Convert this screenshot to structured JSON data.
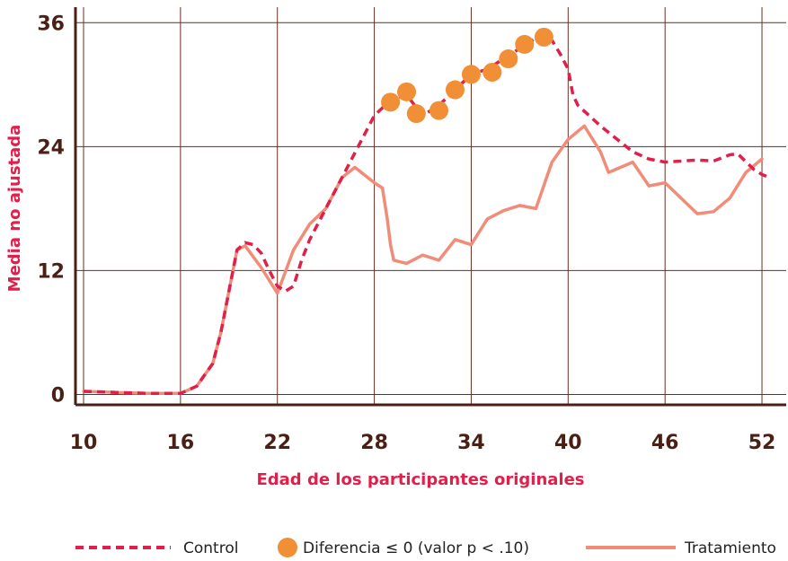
{
  "colors": {
    "axis": "#4a1f14",
    "grid": "#6b2e22",
    "label_accent": "#e0204a",
    "tick_label": "#4a1f14",
    "control": "#e0204a",
    "treatment": "#f08c78",
    "dots": "#f08f36"
  },
  "chart_data": {
    "type": "line",
    "xlabel": "Edad de los participantes originales",
    "ylabel": "Media no ajustada",
    "xlim": [
      9.5,
      53.5
    ],
    "ylim": [
      -1,
      37.5
    ],
    "x_ticks": [
      10,
      16,
      22,
      28,
      34,
      40,
      46,
      52
    ],
    "y_ticks": [
      0,
      12,
      24,
      36
    ],
    "grid": true,
    "legend_position": "bottom",
    "series": [
      {
        "name": "Control",
        "style": "dashed",
        "points": [
          [
            10,
            0.3
          ],
          [
            12,
            0.2
          ],
          [
            14,
            0.1
          ],
          [
            16,
            0.1
          ],
          [
            17,
            0.8
          ],
          [
            18,
            3
          ],
          [
            18.5,
            6
          ],
          [
            19,
            10
          ],
          [
            19.5,
            14
          ],
          [
            20,
            14.7
          ],
          [
            20.5,
            14.5
          ],
          [
            21,
            13.7
          ],
          [
            21.5,
            12
          ],
          [
            22,
            10.5
          ],
          [
            22.5,
            10
          ],
          [
            23,
            10.5
          ],
          [
            23.5,
            13
          ],
          [
            24,
            15
          ],
          [
            25,
            18
          ],
          [
            26,
            21
          ],
          [
            27,
            24
          ],
          [
            28,
            27
          ],
          [
            29,
            28.5
          ],
          [
            30,
            29
          ],
          [
            31,
            27
          ],
          [
            32,
            28
          ],
          [
            33,
            29.5
          ],
          [
            34,
            31
          ],
          [
            35,
            31.5
          ],
          [
            36,
            32.5
          ],
          [
            37,
            33.5
          ],
          [
            38,
            34.5
          ],
          [
            38.8,
            34.8
          ],
          [
            39.5,
            33
          ],
          [
            40,
            31.5
          ],
          [
            40.3,
            29
          ],
          [
            40.6,
            28
          ],
          [
            42,
            26
          ],
          [
            44,
            23.5
          ],
          [
            45,
            22.8
          ],
          [
            46,
            22.5
          ],
          [
            48,
            22.7
          ],
          [
            49,
            22.6
          ],
          [
            50,
            23.2
          ],
          [
            50.5,
            23.3
          ],
          [
            51.5,
            21.8
          ],
          [
            52,
            21.3
          ],
          [
            52.5,
            21
          ]
        ]
      },
      {
        "name": "Tratamiento",
        "style": "solid",
        "points": [
          [
            10,
            0.3
          ],
          [
            12,
            0.2
          ],
          [
            14,
            0.1
          ],
          [
            16,
            0.1
          ],
          [
            17,
            0.8
          ],
          [
            18,
            3
          ],
          [
            18.5,
            6
          ],
          [
            19,
            10
          ],
          [
            19.5,
            14
          ],
          [
            20,
            14.4
          ],
          [
            21,
            12.3
          ],
          [
            22,
            9.8
          ],
          [
            23,
            14
          ],
          [
            24,
            16.5
          ],
          [
            25,
            18
          ],
          [
            26,
            21
          ],
          [
            26.8,
            22
          ],
          [
            28,
            20.5
          ],
          [
            28.5,
            20
          ],
          [
            28.8,
            17
          ],
          [
            29,
            14.5
          ],
          [
            29.2,
            13
          ],
          [
            30,
            12.7
          ],
          [
            31,
            13.5
          ],
          [
            32,
            13
          ],
          [
            33,
            15
          ],
          [
            34,
            14.5
          ],
          [
            35,
            17
          ],
          [
            36,
            17.8
          ],
          [
            37,
            18.3
          ],
          [
            38,
            18
          ],
          [
            39,
            22.5
          ],
          [
            40,
            24.7
          ],
          [
            41,
            26
          ],
          [
            42,
            23.5
          ],
          [
            42.5,
            21.5
          ],
          [
            44,
            22.5
          ],
          [
            45,
            20.2
          ],
          [
            46,
            20.5
          ],
          [
            47,
            19
          ],
          [
            48,
            17.5
          ],
          [
            49,
            17.7
          ],
          [
            50,
            19
          ],
          [
            51,
            21.5
          ],
          [
            52,
            22.8
          ]
        ]
      }
    ],
    "markers": {
      "name": "Diferencia ≤ 0 (valor p < .10)",
      "points": [
        [
          29,
          28.3
        ],
        [
          30,
          29.3
        ],
        [
          30.6,
          27.2
        ],
        [
          32,
          27.5
        ],
        [
          33,
          29.5
        ],
        [
          34,
          31
        ],
        [
          35.3,
          31.2
        ],
        [
          36.3,
          32.5
        ],
        [
          37.3,
          33.9
        ],
        [
          38.5,
          34.6
        ]
      ]
    },
    "legend": [
      {
        "key": "control",
        "label": "Control",
        "type": "dashed"
      },
      {
        "key": "markers",
        "label": "Diferencia ≤ 0 (valor p < .10)",
        "type": "dot"
      },
      {
        "key": "treatment",
        "label": "Tratamiento",
        "type": "solid"
      }
    ]
  }
}
